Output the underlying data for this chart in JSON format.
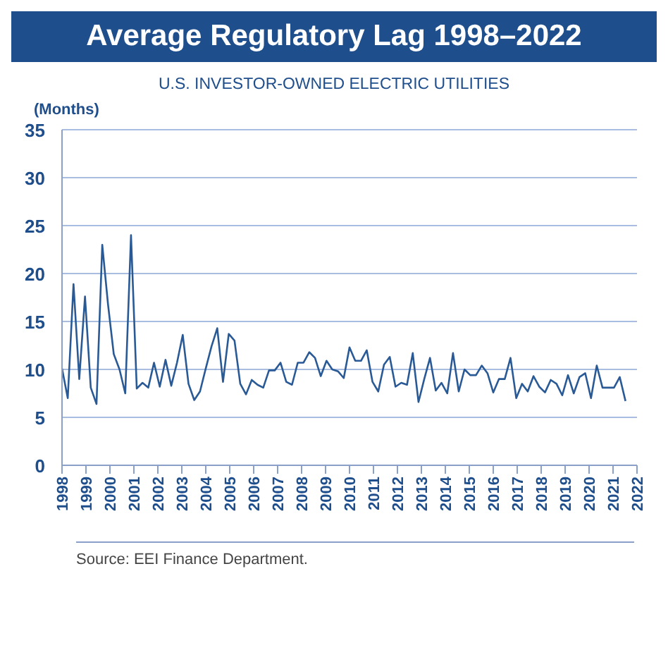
{
  "chart_data": {
    "type": "line",
    "title": "Average Regulatory Lag 1998–2022",
    "subtitle": "U.S. INVESTOR-OWNED ELECTRIC UTILITIES",
    "ylabel": "(Months)",
    "annotations": [
      "Source: EEI Finance Department."
    ],
    "x": [
      1998,
      1998.24,
      1998.48,
      1998.72,
      1998.96,
      1999.2,
      1999.44,
      1999.68,
      1999.92,
      2000.16,
      2000.4,
      2000.64,
      2000.88,
      2001.12,
      2001.36,
      2001.6,
      2001.84,
      2002.08,
      2002.32,
      2002.56,
      2002.8,
      2003.04,
      2003.28,
      2003.52,
      2003.76,
      2004,
      2004.24,
      2004.48,
      2004.72,
      2004.96,
      2005.2,
      2005.44,
      2005.68,
      2005.92,
      2006.16,
      2006.4,
      2006.64,
      2006.88,
      2007.12,
      2007.36,
      2007.6,
      2007.84,
      2008.08,
      2008.32,
      2008.56,
      2008.8,
      2009.04,
      2009.28,
      2009.52,
      2009.76,
      2010,
      2010.24,
      2010.48,
      2010.72,
      2010.96,
      2011.2,
      2011.44,
      2011.68,
      2011.92,
      2012.16,
      2012.4,
      2012.64,
      2012.88,
      2013.12,
      2013.36,
      2013.6,
      2013.84,
      2014.08,
      2014.32,
      2014.56,
      2014.8,
      2015.04,
      2015.28,
      2015.52,
      2015.76,
      2016,
      2016.24,
      2016.48,
      2016.72,
      2016.96,
      2017.2,
      2017.44,
      2017.68,
      2017.92,
      2018.16,
      2018.4,
      2018.64,
      2018.88,
      2019.12,
      2019.36,
      2019.6,
      2019.84,
      2020.08,
      2020.32,
      2020.56,
      2020.8,
      2021.04,
      2021.28,
      2021.52
    ],
    "series": [
      {
        "color": "#2a5a96",
        "values": [
          10.1,
          7.0,
          18.9,
          9.0,
          17.6,
          8.1,
          6.4,
          23.0,
          16.8,
          11.6,
          10.0,
          7.5,
          24.0,
          8.0,
          8.6,
          8.1,
          10.7,
          8.2,
          11.0,
          8.3,
          10.7,
          13.6,
          8.5,
          6.8,
          7.7,
          10.1,
          12.4,
          14.3,
          8.7,
          13.7,
          13.0,
          8.5,
          7.4,
          8.9,
          8.4,
          8.1,
          9.9,
          9.9,
          10.7,
          8.7,
          8.4,
          10.7,
          10.7,
          11.8,
          11.2,
          9.3,
          10.9,
          10.0,
          9.8,
          9.1,
          12.3,
          10.9,
          10.9,
          12.0,
          8.7,
          7.7,
          10.5,
          11.3,
          8.2,
          8.6,
          8.4,
          11.7,
          6.6,
          9.0,
          11.2,
          7.8,
          8.6,
          7.5,
          11.7,
          7.7,
          10.0,
          9.4,
          9.4,
          10.4,
          9.6,
          7.6,
          9.0,
          9.0,
          11.2,
          7.0,
          8.5,
          7.7,
          9.3,
          8.2,
          7.6,
          8.9,
          8.5,
          7.3,
          9.4,
          7.5,
          9.2,
          9.6,
          7.0,
          10.4,
          8.1,
          8.1,
          8.1,
          9.2,
          6.7
        ]
      }
    ],
    "xlim": [
      1998,
      2022
    ],
    "xticks": [
      {
        "value": 1998,
        "label": "1998"
      },
      {
        "value": 1999,
        "label": "1999"
      },
      {
        "value": 2000,
        "label": "2000"
      },
      {
        "value": 2001,
        "label": "2001"
      },
      {
        "value": 2002,
        "label": "2002"
      },
      {
        "value": 2003,
        "label": "2003"
      },
      {
        "value": 2004,
        "label": "2004"
      },
      {
        "value": 2005,
        "label": "2005"
      },
      {
        "value": 2006,
        "label": "2006"
      },
      {
        "value": 2007,
        "label": "2007"
      },
      {
        "value": 2008,
        "label": "2008"
      },
      {
        "value": 2009,
        "label": "2009"
      },
      {
        "value": 2010,
        "label": "2010"
      },
      {
        "value": 2011,
        "label": "2011"
      },
      {
        "value": 2012,
        "label": "2012"
      },
      {
        "value": 2013,
        "label": "2013"
      },
      {
        "value": 2014,
        "label": "2014"
      },
      {
        "value": 2015,
        "label": "2015"
      },
      {
        "value": 2016,
        "label": "2016"
      },
      {
        "value": 2017,
        "label": "2017"
      },
      {
        "value": 2018,
        "label": "2018"
      },
      {
        "value": 2019,
        "label": "2019"
      },
      {
        "value": 2020,
        "label": "2020"
      },
      {
        "value": 2021,
        "label": "2021"
      },
      {
        "value": 2022,
        "label": "2022"
      }
    ],
    "ylim": [
      0,
      35
    ],
    "yticks": [
      0,
      5,
      10,
      15,
      20,
      25,
      30,
      35
    ],
    "grid": "y",
    "legend": false,
    "marker": "none",
    "line_style": "solid"
  }
}
